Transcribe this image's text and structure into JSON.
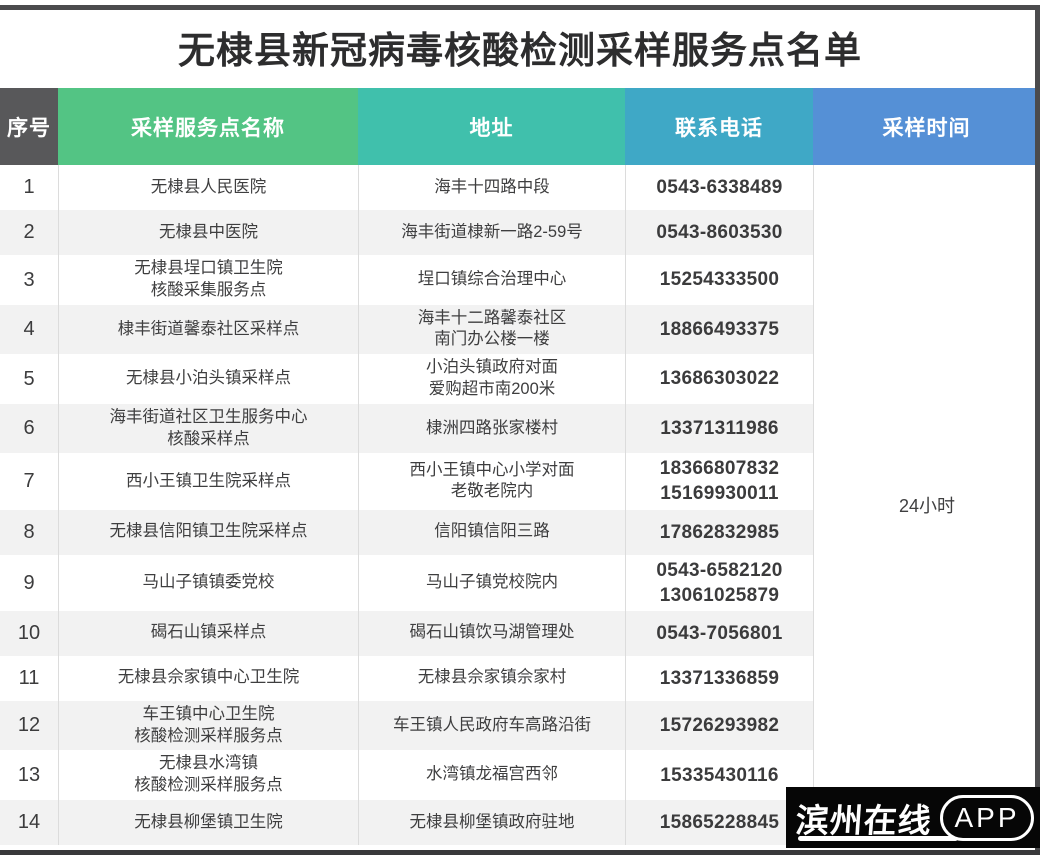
{
  "page": {
    "title": "无棣县新冠病毒核酸检测采样服务点名单",
    "sampling_time": "24小时"
  },
  "table": {
    "columns": [
      "序号",
      "采样服务点名称",
      "地址",
      "联系电话",
      "采样时间"
    ],
    "rows": [
      {
        "no": "1",
        "name": "无棣县人民医院",
        "address": "海丰十四路中段",
        "phone": "0543-6338489"
      },
      {
        "no": "2",
        "name": "无棣县中医院",
        "address": "海丰街道棣新一路2-59号",
        "phone": "0543-8603530"
      },
      {
        "no": "3",
        "name": "无棣县埕口镇卫生院\n核酸采集服务点",
        "address": "埕口镇综合治理中心",
        "phone": "15254333500"
      },
      {
        "no": "4",
        "name": "棣丰街道馨泰社区采样点",
        "address": "海丰十二路馨泰社区\n南门办公楼一楼",
        "phone": "18866493375"
      },
      {
        "no": "5",
        "name": "无棣县小泊头镇采样点",
        "address": "小泊头镇政府对面\n爱购超市南200米",
        "phone": "13686303022"
      },
      {
        "no": "6",
        "name": "海丰街道社区卫生服务中心\n核酸采样点",
        "address": "棣洲四路张家楼村",
        "phone": "13371311986"
      },
      {
        "no": "7",
        "name": "西小王镇卫生院采样点",
        "address": "西小王镇中心小学对面\n老敬老院内",
        "phone": "18366807832\n15169930011"
      },
      {
        "no": "8",
        "name": "无棣县信阳镇卫生院采样点",
        "address": "信阳镇信阳三路",
        "phone": "17862832985"
      },
      {
        "no": "9",
        "name": "马山子镇镇委党校",
        "address": "马山子镇党校院内",
        "phone": "0543-6582120\n13061025879"
      },
      {
        "no": "10",
        "name": "碣石山镇采样点",
        "address": "碣石山镇饮马湖管理处",
        "phone": "0543-7056801"
      },
      {
        "no": "11",
        "name": "无棣县佘家镇中心卫生院",
        "address": "无棣县佘家镇佘家村",
        "phone": "13371336859"
      },
      {
        "no": "12",
        "name": "车王镇中心卫生院\n核酸检测采样服务点",
        "address": "车王镇人民政府车高路沿街",
        "phone": "15726293982"
      },
      {
        "no": "13",
        "name": "无棣县水湾镇\n核酸检测采样服务点",
        "address": "水湾镇龙福宫西邻",
        "phone": "15335430116"
      },
      {
        "no": "14",
        "name": "无棣县柳堡镇卫生院",
        "address": "无棣县柳堡镇政府驻地",
        "phone": "15865228845"
      }
    ]
  },
  "watermark": {
    "brand": "滨州在线",
    "badge": "APP"
  },
  "colors": {
    "header_serial": "#58585a",
    "header_name": "#53c484",
    "header_address": "#40c0ac",
    "header_phone": "#3fa8c6",
    "header_time": "#5590d6",
    "row_stripe": "#f2f2f2",
    "frame_bar": "#4b4b4d",
    "watermark_bg": "#060606",
    "body_text": "#3e3e3f"
  }
}
